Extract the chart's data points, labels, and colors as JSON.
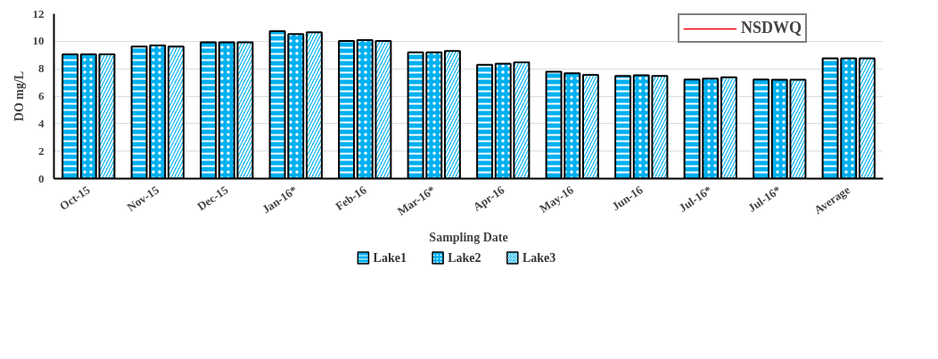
{
  "chart_data": {
    "type": "bar",
    "xlabel": "Sampling Date",
    "ylabel": "DO mg/L",
    "categories": [
      "Oct-15",
      "Nov-15",
      "Dec-15",
      "Jan-16*",
      "Feb-16",
      "Mar-16*",
      "Apr-16",
      "May-16",
      "Jun-16",
      "Jul-16*",
      "Jul-16*",
      "Average"
    ],
    "series": [
      {
        "name": "Lake1",
        "color": "#00b0f0",
        "values": [
          9.05,
          9.62,
          9.92,
          10.73,
          10.02,
          9.19,
          8.28,
          7.79,
          7.48,
          7.22,
          7.22,
          8.76
        ]
      },
      {
        "name": "Lake2",
        "color": "#00b0f0",
        "values": [
          9.05,
          9.7,
          9.92,
          10.52,
          10.08,
          9.19,
          8.36,
          7.67,
          7.53,
          7.28,
          7.2,
          8.76
        ]
      },
      {
        "name": "Lake3",
        "color": "#00b0f0",
        "values": [
          9.05,
          9.62,
          9.92,
          10.65,
          10.02,
          9.3,
          8.46,
          7.55,
          7.48,
          7.38,
          7.2,
          8.76
        ]
      },
      {
        "name": "NSDWQ",
        "type": "line",
        "color": "#ff0000",
        "values": [
          null,
          null,
          null,
          null,
          null,
          null,
          null,
          null,
          null,
          null,
          null,
          null
        ]
      }
    ],
    "ylim": [
      0,
      12
    ],
    "yticks": [
      0,
      2,
      4,
      6,
      8,
      10,
      12
    ],
    "grid": "y",
    "legend": "bottom"
  }
}
